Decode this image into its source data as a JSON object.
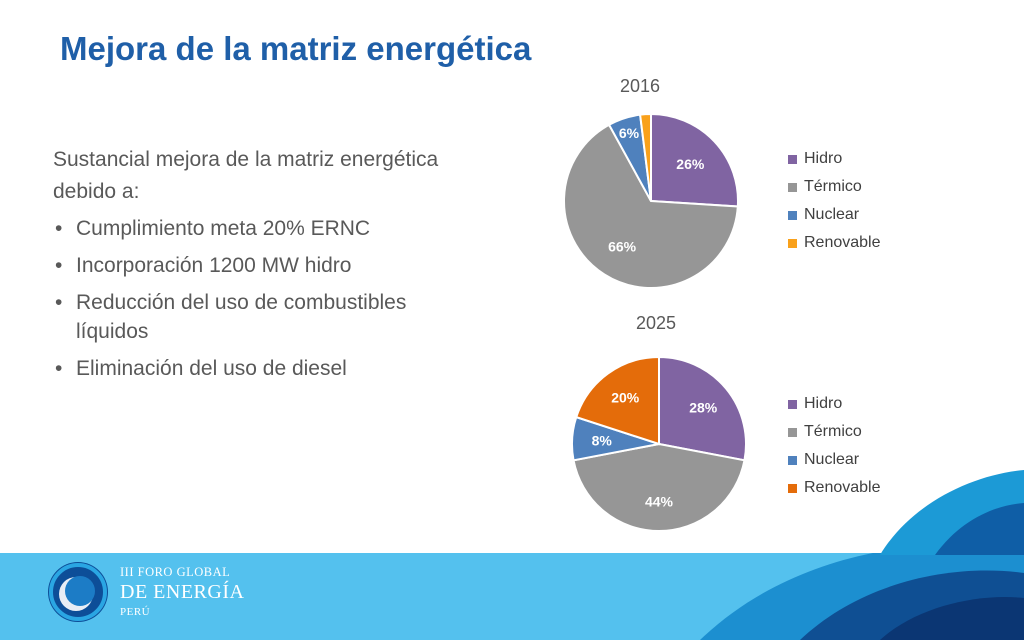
{
  "slide": {
    "title": "Mejora de la matriz energética",
    "intro": "Sustancial mejora de la matriz energética debido a:",
    "bullets": [
      "Cumplimiento meta 20% ERNC",
      "Incorporación 1200 MW hidro",
      "Reducción del uso de combustibles líquidos",
      "Eliminación del uso de diesel"
    ]
  },
  "footer": {
    "line1": "III FORO GLOBAL",
    "line2": "DE ENERGÍA",
    "line3": "PERÚ"
  },
  "colors": {
    "title": "#1f5fa8",
    "hidro": "#8064a2",
    "termico": "#969696",
    "nuclear": "#4f81bd",
    "renovable_2016": "#f9a11b",
    "renovable_2025": "#e46c0a",
    "band": "#54c1ee"
  },
  "chart_data": [
    {
      "type": "pie",
      "title": "2016",
      "legend_position": "right",
      "series": [
        {
          "name": "Hidro",
          "value": 26,
          "label": "26%",
          "color": "#8064a2"
        },
        {
          "name": "Térmico",
          "value": 66,
          "label": "66%",
          "color": "#969696"
        },
        {
          "name": "Nuclear",
          "value": 6,
          "label": "6%",
          "color": "#4f81bd"
        },
        {
          "name": "Renovable",
          "value": 2,
          "label": "",
          "color": "#f9a11b"
        }
      ]
    },
    {
      "type": "pie",
      "title": "2025",
      "legend_position": "right",
      "series": [
        {
          "name": "Hidro",
          "value": 28,
          "label": "28%",
          "color": "#8064a2"
        },
        {
          "name": "Térmico",
          "value": 44,
          "label": "44%",
          "color": "#969696"
        },
        {
          "name": "Nuclear",
          "value": 8,
          "label": "8%",
          "color": "#4f81bd"
        },
        {
          "name": "Renovable",
          "value": 20,
          "label": "20%",
          "color": "#e46c0a"
        }
      ]
    }
  ]
}
